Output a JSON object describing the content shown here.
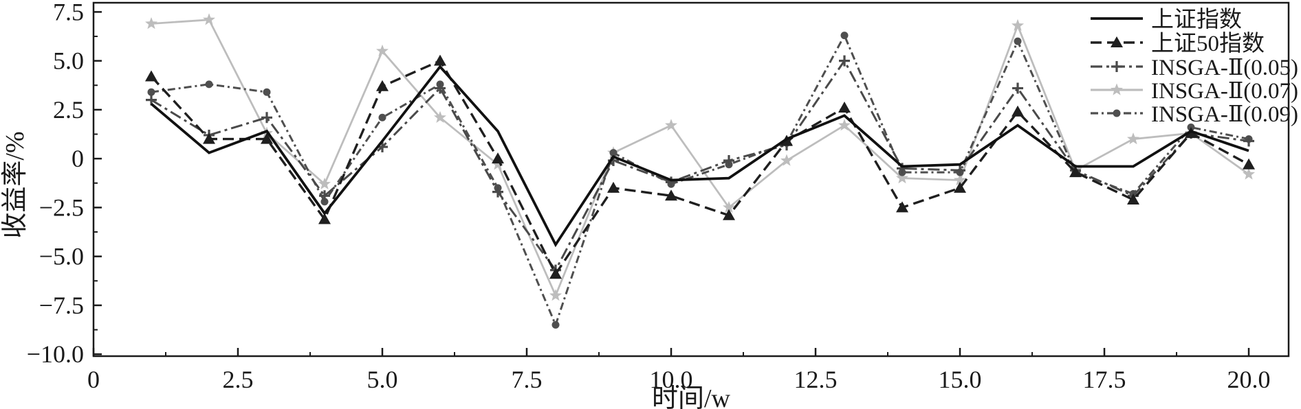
{
  "chart_data": {
    "type": "line",
    "title": "",
    "xlabel": "时间/w",
    "ylabel": "收益率/%",
    "xlim": [
      0,
      20.69
    ],
    "ylim": [
      -10.1,
      7.97
    ],
    "grid": false,
    "legend_position": "top-right",
    "x": [
      1,
      2,
      3,
      4,
      5,
      6,
      7,
      8,
      9,
      10,
      11,
      12,
      13,
      14,
      15,
      16,
      17,
      18,
      19,
      20
    ],
    "x_major_ticks": [
      0,
      2.5,
      5,
      7.5,
      10,
      12.5,
      15,
      17.5,
      20
    ],
    "x_tick_labels": [
      "0",
      "2.5",
      "5.0",
      "7.5",
      "10.0",
      "12.5",
      "15.0",
      "17.5",
      "20.0"
    ],
    "y_major_ticks": [
      7.5,
      5,
      2.5,
      0,
      -2.5,
      -5,
      -7.5,
      -10
    ],
    "y_tick_labels": [
      "7.5",
      "5.0",
      "2.5",
      "0",
      "−2.5",
      "−5.0",
      "−7.5",
      "−10.0"
    ],
    "minor_tick_step": 1.25,
    "axis_color": "#1a1a1a",
    "series": [
      {
        "name": "上证指数",
        "color": "#111111",
        "style": "solid",
        "marker": "none",
        "width": 3.8,
        "values": [
          2.8,
          0.3,
          1.4,
          -2.8,
          0.9,
          4.7,
          1.4,
          -4.4,
          0.1,
          -1.1,
          -1.0,
          1.0,
          2.2,
          -0.4,
          -0.3,
          1.7,
          -0.4,
          -0.4,
          1.4,
          0.4
        ]
      },
      {
        "name": "上证50指数",
        "color": "#1f1f1f",
        "style": "dashed",
        "marker": "triangle",
        "width": 3.4,
        "values": [
          4.2,
          1.0,
          1.0,
          -3.1,
          3.7,
          5.0,
          0.0,
          -5.9,
          -1.5,
          -1.9,
          -2.9,
          0.9,
          2.6,
          -2.5,
          -1.5,
          2.4,
          -0.7,
          -2.1,
          1.3,
          -0.3
        ]
      },
      {
        "name": "INSGA-Ⅱ(0.05)",
        "color": "#4a4a4a",
        "style": "dashdot",
        "marker": "plus",
        "width": 3.0,
        "values": [
          3.0,
          1.2,
          2.1,
          -1.9,
          0.6,
          3.6,
          -1.7,
          -5.7,
          -0.1,
          -1.2,
          -0.1,
          0.7,
          5.0,
          -0.5,
          -0.6,
          3.6,
          -0.6,
          -1.9,
          1.3,
          0.9
        ]
      },
      {
        "name": "INSGA-Ⅱ(0.07)",
        "color": "#bdbdbd",
        "style": "solid",
        "marker": "star",
        "width": 2.8,
        "values": [
          6.9,
          7.1,
          1.3,
          -1.3,
          5.5,
          2.1,
          -0.3,
          -7.0,
          0.3,
          1.7,
          -2.5,
          -0.1,
          1.7,
          -1.0,
          -1.1,
          6.8,
          -0.6,
          1.0,
          1.3,
          -0.8
        ]
      },
      {
        "name": "INSGA-Ⅱ(0.09)",
        "color": "#4f4f4f",
        "style": "dashdotdot",
        "marker": "dot",
        "width": 3.0,
        "values": [
          3.4,
          3.8,
          3.4,
          -2.2,
          2.1,
          3.8,
          -1.5,
          -8.5,
          0.3,
          -1.3,
          -0.3,
          0.8,
          6.3,
          -0.7,
          -0.7,
          6.0,
          -0.7,
          -1.8,
          1.6,
          1.0
        ]
      }
    ]
  }
}
